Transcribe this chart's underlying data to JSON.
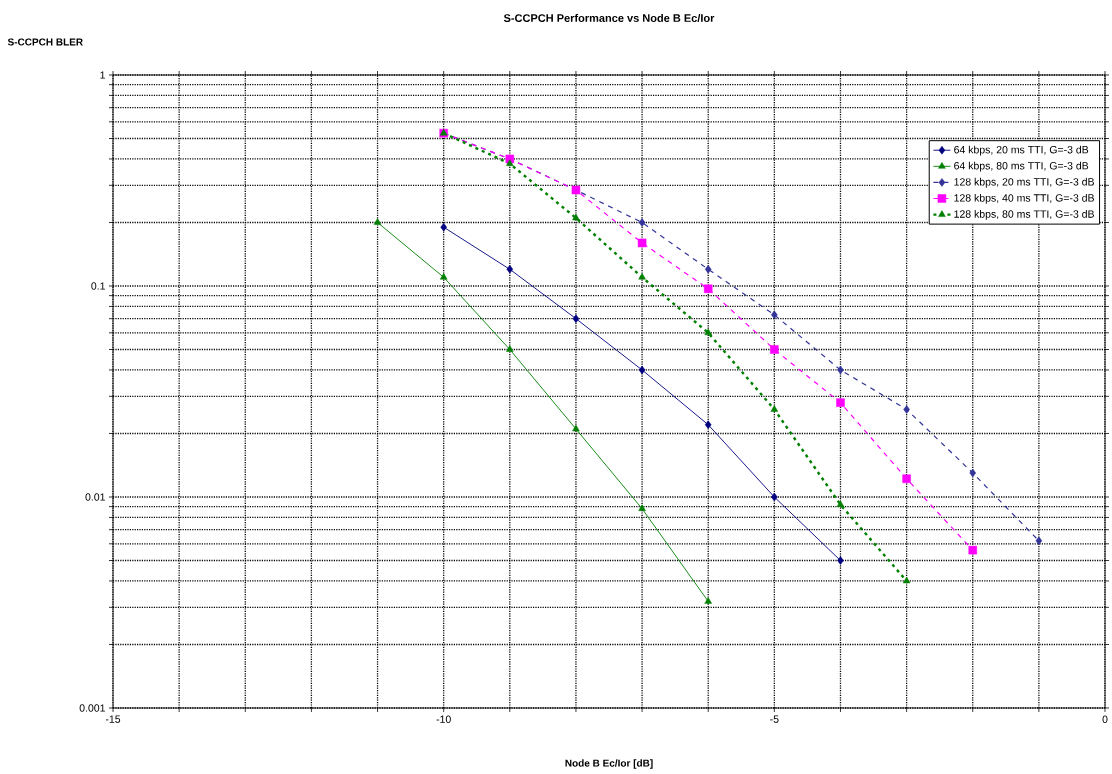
{
  "chart_data": {
    "type": "line",
    "title": "S-CCPCH Performance vs Node B Ec/Ior",
    "ylabel": "S-CCPCH BLER",
    "xlabel": "Node B Ec/Ior [dB]",
    "log": "y",
    "grid": true,
    "legend": "top right",
    "xlim": [
      -15,
      0
    ],
    "ylim": [
      0.001,
      1
    ],
    "xticks": [
      -15,
      {
        "value": -14,
        "label": null
      },
      {
        "value": -13,
        "label": null
      },
      {
        "value": -12,
        "label": null
      },
      {
        "value": -11,
        "label": null
      },
      -10,
      {
        "value": -9,
        "label": null
      },
      {
        "value": -8,
        "label": null
      },
      {
        "value": -7,
        "label": null
      },
      {
        "value": -6,
        "label": null
      },
      -5,
      {
        "value": -4,
        "label": null
      },
      {
        "value": -3,
        "label": null
      },
      {
        "value": -2,
        "label": null
      },
      {
        "value": -1,
        "label": null
      },
      0
    ],
    "yticks": [
      0.001,
      {
        "value": 0.002,
        "label": null
      },
      {
        "value": 0.003,
        "label": null
      },
      {
        "value": 0.004,
        "label": null
      },
      {
        "value": 0.005,
        "label": null
      },
      {
        "value": 0.006,
        "label": null
      },
      {
        "value": 0.007,
        "label": null
      },
      {
        "value": 0.008,
        "label": null
      },
      {
        "value": 0.009,
        "label": null
      },
      0.01,
      {
        "value": 0.02,
        "label": null
      },
      {
        "value": 0.03,
        "label": null
      },
      {
        "value": 0.04,
        "label": null
      },
      {
        "value": 0.05,
        "label": null
      },
      {
        "value": 0.06,
        "label": null
      },
      {
        "value": 0.07,
        "label": null
      },
      {
        "value": 0.08,
        "label": null
      },
      {
        "value": 0.09,
        "label": null
      },
      0.1,
      {
        "value": 0.2,
        "label": null
      },
      {
        "value": 0.3,
        "label": null
      },
      {
        "value": 0.4,
        "label": null
      },
      {
        "value": 0.5,
        "label": null
      },
      {
        "value": 0.6,
        "label": null
      },
      {
        "value": 0.7,
        "label": null
      },
      {
        "value": 0.8,
        "label": null
      },
      {
        "value": 0.9,
        "label": null
      },
      1
    ],
    "series": [
      {
        "name": "64 kbps, 20 ms TTI, G=-3 dB",
        "color": "#000080",
        "marker": "diamond",
        "line_style": "solid",
        "x": [
          -10,
          -9,
          -8,
          -7,
          -6,
          -5,
          -4
        ],
        "values": [
          0.19,
          0.12,
          0.07,
          0.04,
          0.022,
          0.01,
          0.005
        ]
      },
      {
        "name": "64 kbps, 80 ms TTI, G=-3 dB",
        "color": "#008000",
        "marker": "triangle",
        "line_style": "solid",
        "x": [
          -11,
          -10,
          -9,
          -8,
          -7,
          -6
        ],
        "values": [
          0.2,
          0.11,
          0.05,
          0.021,
          0.0088,
          0.0032
        ]
      },
      {
        "name": "128 kbps, 20 ms TTI, G=-3 dB",
        "color": "#333399",
        "marker": "diamond",
        "line_style": "dashed",
        "x": [
          -10,
          -9,
          -8,
          -7,
          -6,
          -5,
          -4,
          -3,
          -2,
          -1
        ],
        "values": [
          0.53,
          0.4,
          0.285,
          0.2,
          0.12,
          0.073,
          0.04,
          0.026,
          0.013,
          0.0062
        ]
      },
      {
        "name": "128 kbps, 40 ms TTI, G=-3 dB",
        "color": "#ff00ff",
        "marker": "square",
        "line_style": "dashed",
        "x": [
          -10,
          -9,
          -8,
          -7,
          -6,
          -5,
          -4,
          -3,
          -2
        ],
        "values": [
          0.53,
          0.4,
          0.285,
          0.16,
          0.097,
          0.05,
          0.028,
          0.0122,
          0.0056
        ]
      },
      {
        "name": "128 kbps, 80 ms TTI, G=-3 dB",
        "color": "#008000",
        "marker": "triangle",
        "line_style": "dotted",
        "x": [
          -10,
          -9,
          -8,
          -7,
          -6,
          -5,
          -4,
          -3
        ],
        "values": [
          0.53,
          0.38,
          0.21,
          0.11,
          0.06,
          0.026,
          0.0092,
          0.004
        ]
      }
    ]
  }
}
